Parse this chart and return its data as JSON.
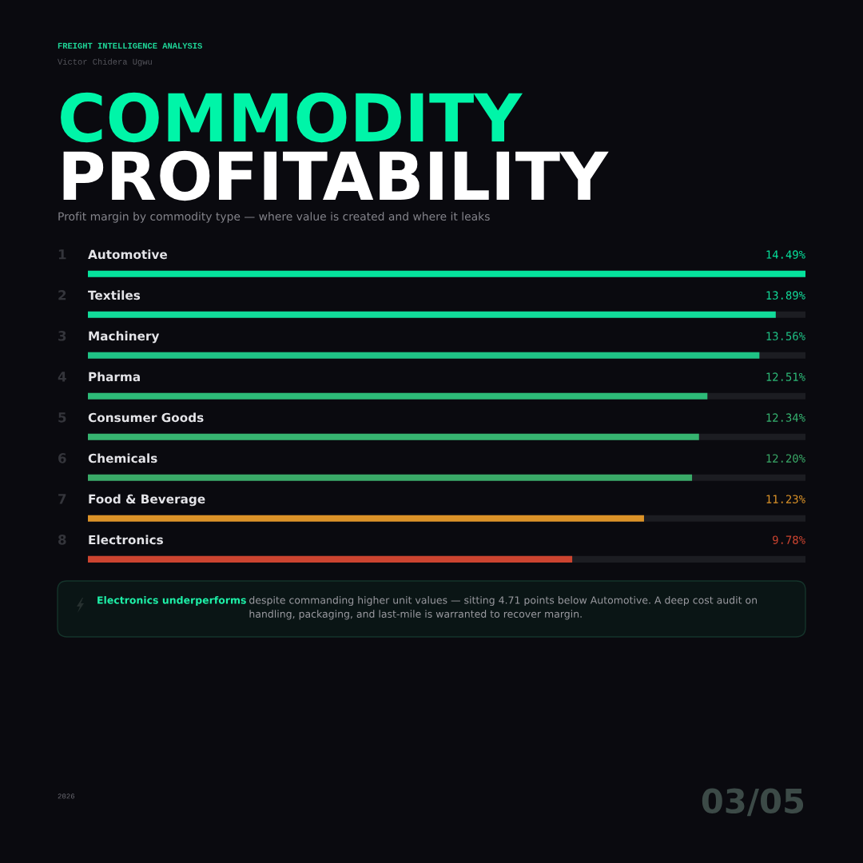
{
  "chart_data": {
    "type": "bar",
    "orientation": "horizontal",
    "title": "COMMODITY\nPROFITABILITY",
    "subtitle": "Profit margin by commodity type — where value is created and where it leaks",
    "categories": [
      "Automotive",
      "Textiles",
      "Machinery",
      "Pharma",
      "Consumer Goods",
      "Chemicals",
      "Food & Beverage",
      "Electronics"
    ],
    "values": [
      14.49,
      13.89,
      13.56,
      12.51,
      12.34,
      12.2,
      11.23,
      9.78
    ],
    "value_labels": [
      "14.49%",
      "13.89%",
      "13.56%",
      "12.51%",
      "12.34%",
      "12.20%",
      "11.23%",
      "9.78%"
    ],
    "colors": [
      "#05e39c",
      "#12dc9a",
      "#1fc285",
      "#2dbb78",
      "#36b470",
      "#3aaa68",
      "#dc9328",
      "#cc4430"
    ],
    "xlim": [
      0,
      14.49
    ],
    "tick_labels": "y",
    "annotations": [
      "FREIGHT INTELLIGENCE ANALYSIS",
      "Victor Chidera Ugwu",
      "1",
      "2",
      "3",
      "4",
      "5",
      "6",
      "7",
      "8",
      "Electronics underperforms",
      "despite commanding higher unit values — sitting 4.71 points below Automotive. A deep cost audit on handling, packaging, and last-mile is warranted to recover margin.",
      "2026",
      "03/05"
    ]
  }
}
